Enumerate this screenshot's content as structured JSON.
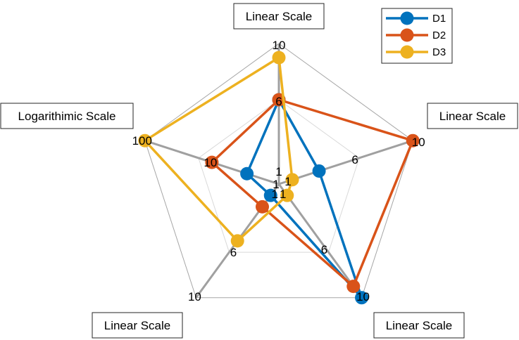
{
  "chart_data": {
    "type": "radar",
    "axes": [
      {
        "label": "Linear Scale",
        "scale": "linear",
        "min": 0,
        "max": 10,
        "ticks": [
          "1",
          "6",
          "10"
        ],
        "tick_values": [
          1,
          6,
          10
        ]
      },
      {
        "label": "Linear Scale",
        "scale": "linear",
        "min": 0,
        "max": 10,
        "ticks": [
          "1",
          "6",
          "10"
        ],
        "tick_values": [
          1,
          6,
          10
        ]
      },
      {
        "label": "Linear Scale",
        "scale": "linear",
        "min": 0,
        "max": 10,
        "ticks": [
          "1",
          "6",
          "10"
        ],
        "tick_values": [
          1,
          6,
          10
        ]
      },
      {
        "label": "Linear Scale",
        "scale": "linear",
        "min": 0,
        "max": 10,
        "ticks": [
          "1",
          "6",
          "10"
        ],
        "tick_values": [
          1,
          6,
          10
        ]
      },
      {
        "label": "Logarithimic Scale",
        "scale": "log",
        "min": 1,
        "max": 100,
        "ticks": [
          "1",
          "10",
          "100"
        ],
        "tick_values": [
          1,
          10,
          100
        ]
      }
    ],
    "series": [
      {
        "name": "D1",
        "color": "#0072BD",
        "values": [
          6,
          3,
          10,
          1,
          3
        ]
      },
      {
        "name": "D2",
        "color": "#D95319",
        "values": [
          6,
          10,
          9,
          2,
          10
        ]
      },
      {
        "name": "D3",
        "color": "#EDB120",
        "values": [
          9,
          1,
          1,
          5,
          100
        ]
      }
    ],
    "legend_position": "top-right"
  }
}
